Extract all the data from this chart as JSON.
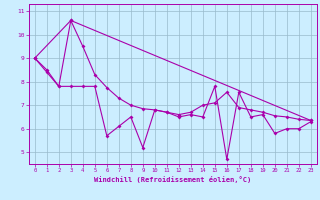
{
  "xlabel": "Windchill (Refroidissement éolien,°C)",
  "bg_color": "#cceeff",
  "line_color": "#aa00aa",
  "grid_color": "#99bbcc",
  "axis_color": "#aa00aa",
  "tick_color": "#aa00aa",
  "xlim": [
    -0.5,
    23.5
  ],
  "ylim": [
    4.5,
    11.3
  ],
  "xticks": [
    0,
    1,
    2,
    3,
    4,
    5,
    6,
    7,
    8,
    9,
    10,
    11,
    12,
    13,
    14,
    15,
    16,
    17,
    18,
    19,
    20,
    21,
    22,
    23
  ],
  "yticks": [
    5,
    6,
    7,
    8,
    9,
    10,
    11
  ],
  "line1_x": [
    0,
    1,
    2,
    3,
    4,
    5,
    6,
    7,
    8,
    9,
    10,
    11,
    12,
    13,
    14,
    15,
    16,
    17,
    18,
    19,
    20,
    21,
    22,
    23
  ],
  "line1_y": [
    9.0,
    8.4,
    7.8,
    7.8,
    7.8,
    7.8,
    5.7,
    6.1,
    6.5,
    5.2,
    6.8,
    6.7,
    6.5,
    6.6,
    6.5,
    7.8,
    4.7,
    7.55,
    6.5,
    6.6,
    5.8,
    6.0,
    6.0,
    6.3
  ],
  "line2_x": [
    0,
    1,
    2,
    3,
    4,
    5,
    6,
    7,
    8,
    9,
    10,
    11,
    12,
    13,
    14,
    15,
    16,
    17,
    18,
    19,
    20,
    21,
    22,
    23
  ],
  "line2_y": [
    9.0,
    8.5,
    7.8,
    10.6,
    9.5,
    8.3,
    7.75,
    7.3,
    7.0,
    6.85,
    6.8,
    6.7,
    6.6,
    6.7,
    7.0,
    7.1,
    7.55,
    6.9,
    6.8,
    6.7,
    6.55,
    6.5,
    6.4,
    6.35
  ],
  "line3_x": [
    0,
    3,
    23
  ],
  "line3_y": [
    9.0,
    10.6,
    6.35
  ]
}
